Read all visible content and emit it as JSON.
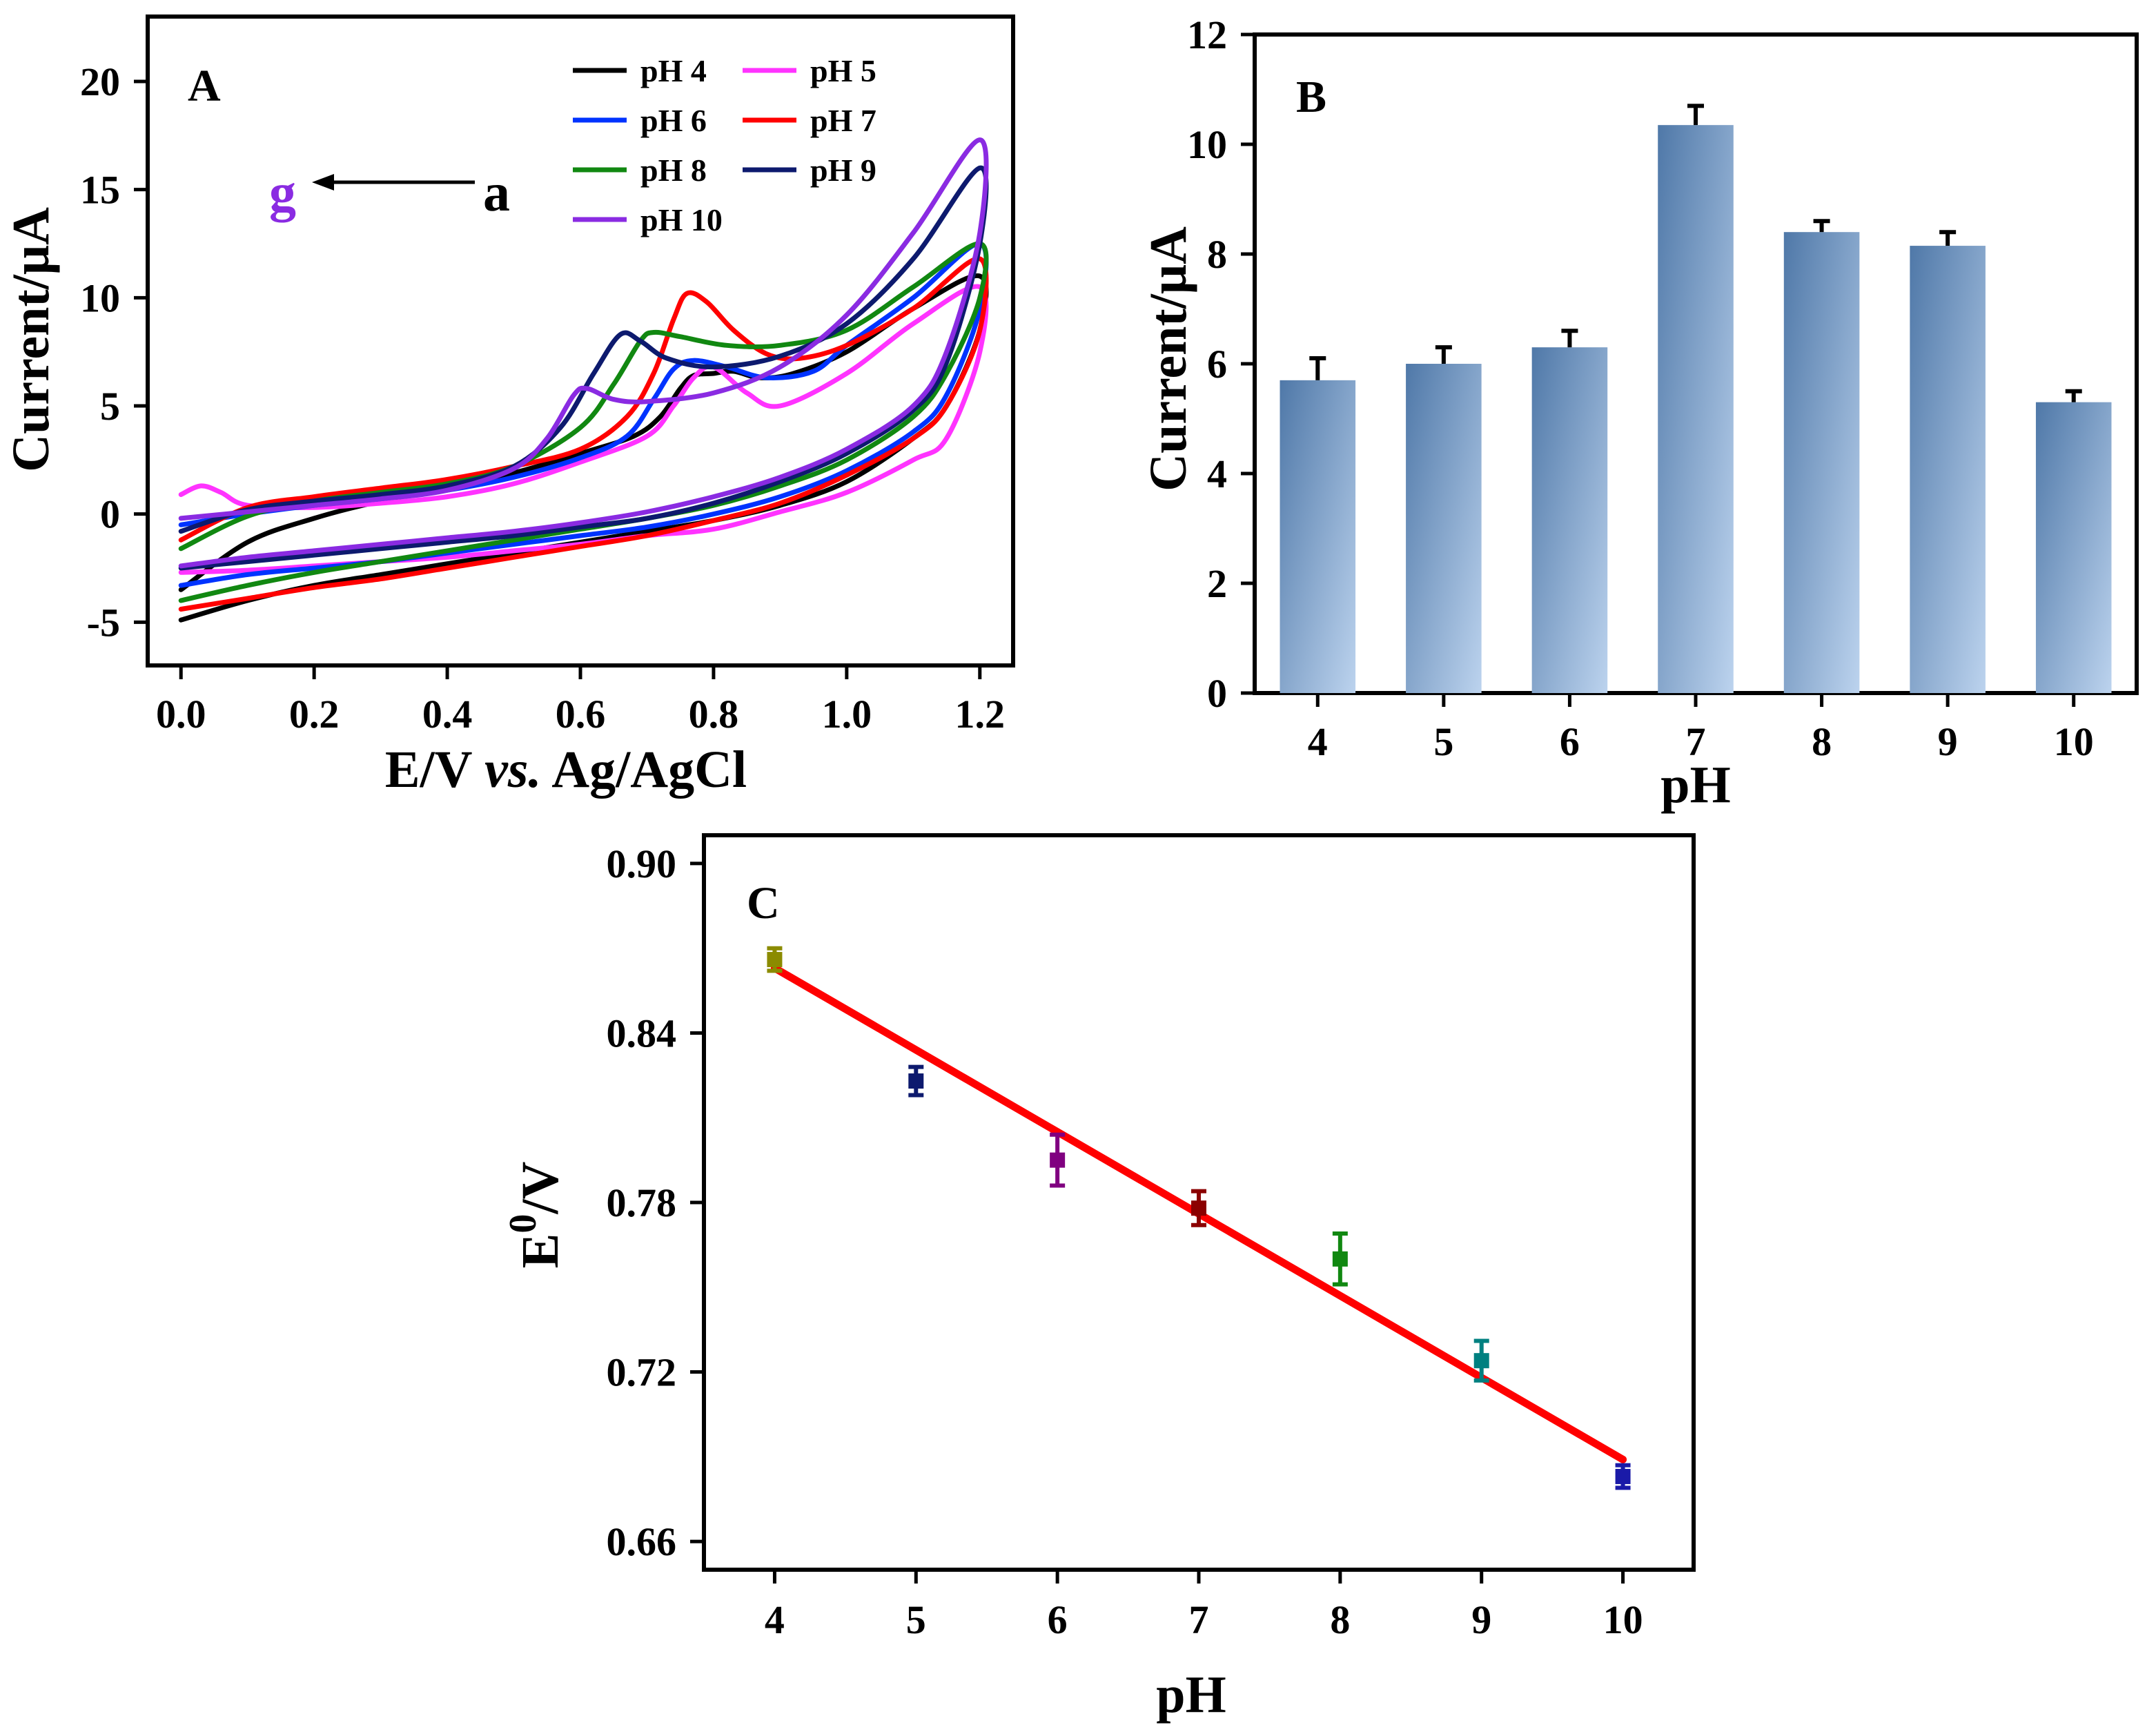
{
  "colors": {
    "bar_dark": "#4f78a8",
    "bar_light": "#bcd3ee",
    "fit_line": "#ff0000"
  },
  "chart_data": [
    {
      "panel": "A",
      "type": "line",
      "title": "",
      "xlabel": "E/V vs. Ag/AgCl",
      "xlabel_plain": "E/V ",
      "xlabel_italic": "vs.",
      "xlabel_tail": " Ag/AgCl",
      "ylabel": "Current/μA",
      "xlim": [
        -0.05,
        1.25
      ],
      "ylim": [
        -7,
        23
      ],
      "xticks": [
        0.0,
        0.2,
        0.4,
        0.6,
        0.8,
        1.0,
        1.2
      ],
      "xtick_labels": [
        "0.0",
        "0.2",
        "0.4",
        "0.6",
        "0.8",
        "1.0",
        "1.2"
      ],
      "yticks": [
        -5,
        0,
        5,
        10,
        15,
        20
      ],
      "ytick_labels": [
        "-5",
        "0",
        "5",
        "10",
        "15",
        "20"
      ],
      "annotation": {
        "start": "g",
        "end": "a",
        "start_color": "#8a2be2"
      },
      "series": [
        {
          "name": "pH 4",
          "color": "#000000",
          "forward": [
            [
              0.0,
              -3.5
            ],
            [
              0.1,
              -1.3
            ],
            [
              0.2,
              -0.2
            ],
            [
              0.3,
              0.6
            ],
            [
              0.4,
              1.2
            ],
            [
              0.5,
              1.9
            ],
            [
              0.6,
              2.8
            ],
            [
              0.68,
              3.6
            ],
            [
              0.72,
              4.5
            ],
            [
              0.75,
              5.8
            ],
            [
              0.77,
              6.4
            ],
            [
              0.8,
              6.5
            ],
            [
              0.83,
              6.6
            ],
            [
              0.87,
              6.3
            ],
            [
              0.92,
              6.5
            ],
            [
              1.0,
              7.5
            ],
            [
              1.1,
              9.5
            ],
            [
              1.2,
              11.0
            ]
          ],
          "reverse": [
            [
              1.2,
              8.5
            ],
            [
              1.15,
              5.0
            ],
            [
              1.1,
              3.5
            ],
            [
              1.0,
              1.5
            ],
            [
              0.9,
              0.4
            ],
            [
              0.8,
              -0.3
            ],
            [
              0.7,
              -0.8
            ],
            [
              0.6,
              -1.3
            ],
            [
              0.5,
              -1.8
            ],
            [
              0.4,
              -2.3
            ],
            [
              0.3,
              -2.8
            ],
            [
              0.2,
              -3.3
            ],
            [
              0.1,
              -4.0
            ],
            [
              0.0,
              -4.9
            ]
          ]
        },
        {
          "name": "pH 5",
          "color": "#ff33ff",
          "forward": [
            [
              0.0,
              0.9
            ],
            [
              0.03,
              1.3
            ],
            [
              0.06,
              1.0
            ],
            [
              0.1,
              0.4
            ],
            [
              0.2,
              0.3
            ],
            [
              0.3,
              0.5
            ],
            [
              0.4,
              0.8
            ],
            [
              0.5,
              1.4
            ],
            [
              0.6,
              2.4
            ],
            [
              0.7,
              3.6
            ],
            [
              0.74,
              5.0
            ],
            [
              0.77,
              6.3
            ],
            [
              0.8,
              6.8
            ],
            [
              0.85,
              5.6
            ],
            [
              0.9,
              5.0
            ],
            [
              1.0,
              6.5
            ],
            [
              1.1,
              8.8
            ],
            [
              1.2,
              10.5
            ]
          ],
          "reverse": [
            [
              1.2,
              7.5
            ],
            [
              1.15,
              3.5
            ],
            [
              1.1,
              2.5
            ],
            [
              1.0,
              1.0
            ],
            [
              0.9,
              0.1
            ],
            [
              0.8,
              -0.7
            ],
            [
              0.7,
              -1.0
            ],
            [
              0.6,
              -1.4
            ],
            [
              0.5,
              -1.7
            ],
            [
              0.4,
              -2.0
            ],
            [
              0.3,
              -2.2
            ],
            [
              0.2,
              -2.4
            ],
            [
              0.1,
              -2.6
            ],
            [
              0.0,
              -2.7
            ]
          ]
        },
        {
          "name": "pH 6",
          "color": "#0033ff",
          "forward": [
            [
              0.0,
              -0.5
            ],
            [
              0.1,
              0.0
            ],
            [
              0.2,
              0.4
            ],
            [
              0.3,
              0.7
            ],
            [
              0.4,
              1.1
            ],
            [
              0.5,
              1.7
            ],
            [
              0.6,
              2.6
            ],
            [
              0.67,
              3.6
            ],
            [
              0.71,
              5.3
            ],
            [
              0.74,
              6.7
            ],
            [
              0.77,
              7.1
            ],
            [
              0.82,
              6.8
            ],
            [
              0.88,
              6.3
            ],
            [
              0.95,
              6.6
            ],
            [
              1.0,
              7.8
            ],
            [
              1.1,
              10.0
            ],
            [
              1.2,
              12.5
            ]
          ],
          "reverse": [
            [
              1.2,
              9.5
            ],
            [
              1.15,
              5.5
            ],
            [
              1.1,
              3.8
            ],
            [
              1.0,
              2.0
            ],
            [
              0.9,
              0.8
            ],
            [
              0.8,
              0.0
            ],
            [
              0.7,
              -0.6
            ],
            [
              0.6,
              -1.0
            ],
            [
              0.5,
              -1.4
            ],
            [
              0.4,
              -1.8
            ],
            [
              0.3,
              -2.2
            ],
            [
              0.2,
              -2.5
            ],
            [
              0.1,
              -2.8
            ],
            [
              0.0,
              -3.3
            ]
          ]
        },
        {
          "name": "pH 7",
          "color": "#ff0000",
          "forward": [
            [
              0.0,
              -1.2
            ],
            [
              0.1,
              0.3
            ],
            [
              0.2,
              0.8
            ],
            [
              0.3,
              1.2
            ],
            [
              0.4,
              1.6
            ],
            [
              0.5,
              2.2
            ],
            [
              0.6,
              3.0
            ],
            [
              0.67,
              4.5
            ],
            [
              0.71,
              6.5
            ],
            [
              0.74,
              9.0
            ],
            [
              0.76,
              10.2
            ],
            [
              0.79,
              9.8
            ],
            [
              0.83,
              8.5
            ],
            [
              0.88,
              7.4
            ],
            [
              0.93,
              7.2
            ],
            [
              1.0,
              7.8
            ],
            [
              1.1,
              9.5
            ],
            [
              1.2,
              11.8
            ]
          ],
          "reverse": [
            [
              1.2,
              8.5
            ],
            [
              1.15,
              5.0
            ],
            [
              1.1,
              3.5
            ],
            [
              1.0,
              1.8
            ],
            [
              0.9,
              0.5
            ],
            [
              0.8,
              -0.3
            ],
            [
              0.7,
              -1.0
            ],
            [
              0.6,
              -1.5
            ],
            [
              0.5,
              -2.0
            ],
            [
              0.4,
              -2.5
            ],
            [
              0.3,
              -3.0
            ],
            [
              0.2,
              -3.4
            ],
            [
              0.1,
              -3.9
            ],
            [
              0.0,
              -4.4
            ]
          ]
        },
        {
          "name": "pH 8",
          "color": "#118811",
          "forward": [
            [
              0.0,
              -1.6
            ],
            [
              0.1,
              -0.1
            ],
            [
              0.2,
              0.6
            ],
            [
              0.3,
              1.0
            ],
            [
              0.4,
              1.4
            ],
            [
              0.5,
              2.2
            ],
            [
              0.6,
              4.0
            ],
            [
              0.65,
              6.0
            ],
            [
              0.69,
              8.0
            ],
            [
              0.71,
              8.4
            ],
            [
              0.75,
              8.2
            ],
            [
              0.82,
              7.8
            ],
            [
              0.9,
              7.8
            ],
            [
              1.0,
              8.5
            ],
            [
              1.1,
              10.5
            ],
            [
              1.2,
              12.5
            ]
          ],
          "reverse": [
            [
              1.2,
              10.0
            ],
            [
              1.15,
              6.5
            ],
            [
              1.1,
              4.5
            ],
            [
              1.0,
              2.5
            ],
            [
              0.9,
              1.3
            ],
            [
              0.8,
              0.4
            ],
            [
              0.7,
              -0.2
            ],
            [
              0.6,
              -0.7
            ],
            [
              0.5,
              -1.2
            ],
            [
              0.4,
              -1.7
            ],
            [
              0.3,
              -2.2
            ],
            [
              0.2,
              -2.7
            ],
            [
              0.1,
              -3.3
            ],
            [
              0.0,
              -4.0
            ]
          ]
        },
        {
          "name": "pH 9",
          "color": "#0d1a6e",
          "forward": [
            [
              0.0,
              -0.8
            ],
            [
              0.1,
              0.2
            ],
            [
              0.2,
              0.6
            ],
            [
              0.3,
              0.9
            ],
            [
              0.4,
              1.3
            ],
            [
              0.5,
              2.2
            ],
            [
              0.57,
              4.0
            ],
            [
              0.62,
              6.5
            ],
            [
              0.66,
              8.3
            ],
            [
              0.69,
              8.0
            ],
            [
              0.73,
              7.2
            ],
            [
              0.8,
              6.8
            ],
            [
              0.9,
              7.3
            ],
            [
              1.0,
              8.8
            ],
            [
              1.1,
              11.8
            ],
            [
              1.2,
              16.0
            ]
          ],
          "reverse": [
            [
              1.2,
              12.5
            ],
            [
              1.15,
              7.0
            ],
            [
              1.1,
              4.8
            ],
            [
              1.0,
              2.8
            ],
            [
              0.9,
              1.5
            ],
            [
              0.8,
              0.5
            ],
            [
              0.7,
              -0.2
            ],
            [
              0.6,
              -0.6
            ],
            [
              0.5,
              -1.0
            ],
            [
              0.4,
              -1.3
            ],
            [
              0.3,
              -1.6
            ],
            [
              0.2,
              -1.9
            ],
            [
              0.1,
              -2.2
            ],
            [
              0.0,
              -2.5
            ]
          ]
        },
        {
          "name": "pH 10",
          "color": "#8a2be2",
          "forward": [
            [
              0.0,
              -0.2
            ],
            [
              0.1,
              0.1
            ],
            [
              0.2,
              0.4
            ],
            [
              0.3,
              0.7
            ],
            [
              0.4,
              1.1
            ],
            [
              0.5,
              2.1
            ],
            [
              0.55,
              3.5
            ],
            [
              0.59,
              5.5
            ],
            [
              0.61,
              5.8
            ],
            [
              0.65,
              5.3
            ],
            [
              0.7,
              5.2
            ],
            [
              0.8,
              5.6
            ],
            [
              0.9,
              6.8
            ],
            [
              1.0,
              9.2
            ],
            [
              1.1,
              13.0
            ],
            [
              1.2,
              17.3
            ]
          ],
          "reverse": [
            [
              1.2,
              13.0
            ],
            [
              1.15,
              7.5
            ],
            [
              1.1,
              5.0
            ],
            [
              1.0,
              3.0
            ],
            [
              0.9,
              1.7
            ],
            [
              0.8,
              0.8
            ],
            [
              0.7,
              0.1
            ],
            [
              0.6,
              -0.4
            ],
            [
              0.5,
              -0.8
            ],
            [
              0.4,
              -1.1
            ],
            [
              0.3,
              -1.4
            ],
            [
              0.2,
              -1.7
            ],
            [
              0.1,
              -2.0
            ],
            [
              0.0,
              -2.4
            ]
          ]
        }
      ]
    },
    {
      "panel": "B",
      "type": "bar",
      "title": "",
      "xlabel": "pH",
      "ylabel": "Current/μA",
      "categories": [
        "4",
        "5",
        "6",
        "7",
        "8",
        "9",
        "10"
      ],
      "values": [
        5.7,
        6.0,
        6.3,
        10.35,
        8.4,
        8.15,
        5.3
      ],
      "errors": [
        0.4,
        0.3,
        0.3,
        0.35,
        0.2,
        0.25,
        0.2
      ],
      "ylim": [
        0,
        12
      ],
      "yticks": [
        0,
        2,
        4,
        6,
        8,
        10,
        12
      ],
      "ytick_labels": [
        "0",
        "2",
        "4",
        "6",
        "8",
        "10",
        "12"
      ]
    },
    {
      "panel": "C",
      "type": "scatter",
      "title": "",
      "xlabel": "pH",
      "ylabel_main": "E",
      "ylabel_sup": "0",
      "ylabel_tail": "/V",
      "x": [
        4,
        5,
        6,
        7,
        8,
        9,
        10
      ],
      "y": [
        0.866,
        0.823,
        0.795,
        0.778,
        0.76,
        0.724,
        0.683
      ],
      "errors": [
        0.004,
        0.005,
        0.009,
        0.006,
        0.009,
        0.007,
        0.004
      ],
      "point_colors": [
        "#8b8b00",
        "#0d1a6e",
        "#800080",
        "#8b0000",
        "#118811",
        "#008080",
        "#1a1aa8"
      ],
      "fit": {
        "x": [
          4,
          10
        ],
        "y": [
          0.863,
          0.689
        ],
        "color": "#ff0000"
      },
      "xlim": [
        3.5,
        10.5
      ],
      "ylim": [
        0.65,
        0.91
      ],
      "xticks": [
        4,
        5,
        6,
        7,
        8,
        9,
        10
      ],
      "xtick_labels": [
        "4",
        "5",
        "6",
        "7",
        "8",
        "9",
        "10"
      ],
      "yticks": [
        0.66,
        0.72,
        0.78,
        0.84,
        0.9
      ],
      "ytick_labels": [
        "0.66",
        "0.72",
        "0.78",
        "0.84",
        "0.90"
      ]
    }
  ]
}
